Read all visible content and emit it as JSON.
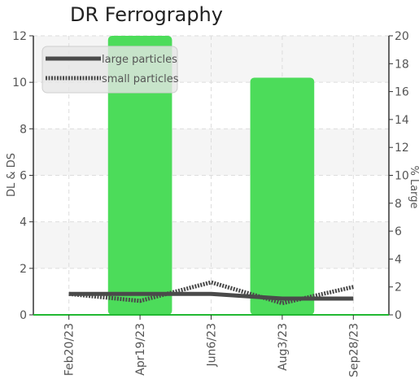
{
  "chart_data": {
    "type": "bar",
    "title": "DR Ferrography",
    "categories": [
      "Feb20/23",
      "Apr19/23",
      "Jun6/23",
      "Aug3/23",
      "Sep28/23"
    ],
    "ylabel_left": "DL & DS",
    "ylabel_right": "% Large",
    "ylim_left": [
      0,
      12
    ],
    "ylim_right": [
      0,
      20
    ],
    "yticks_left": [
      0,
      2,
      4,
      6,
      8,
      10,
      12
    ],
    "yticks_right": [
      0,
      2,
      4,
      6,
      8,
      10,
      12,
      14,
      16,
      18,
      20
    ],
    "grid": true,
    "legend_position": "top-left",
    "bars": {
      "axis": "right",
      "color": "#4cdc5a",
      "values": [
        0,
        20,
        0,
        17,
        0
      ]
    },
    "series": [
      {
        "name": "large particles",
        "type": "line",
        "style": "solid",
        "axis": "left",
        "color": "#4a4a4a",
        "values": [
          0.9,
          0.9,
          0.9,
          0.7,
          0.7
        ]
      },
      {
        "name": "small particles",
        "type": "line",
        "style": "dotted",
        "axis": "left",
        "color": "#4a4a4a",
        "values": [
          0.9,
          0.6,
          1.4,
          0.5,
          1.2
        ]
      }
    ]
  }
}
